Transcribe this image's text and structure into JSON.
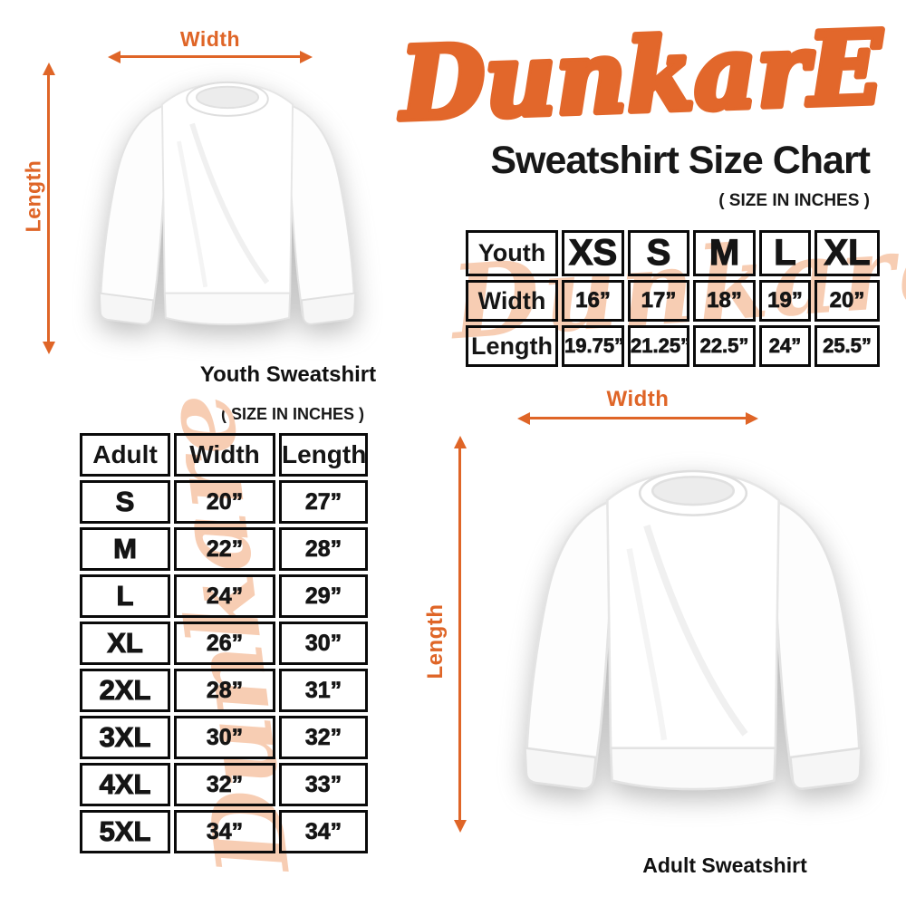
{
  "colors": {
    "accent": "#DF6527",
    "logo_orange": "#E2672B",
    "watermark": "#F7CDB3",
    "table_border": "#0A0A0A"
  },
  "header": {
    "brand": "DunkarE",
    "title": "Sweatshirt Size Chart",
    "note": "( SIZE IN INCHES )"
  },
  "youth_diagram": {
    "width_label": "Width",
    "length_label": "Length",
    "caption": "Youth Sweatshirt"
  },
  "adult_diagram": {
    "width_label": "Width",
    "length_label": "Length",
    "caption": "Adult Sweatshirt"
  },
  "adult_section_note": "( SIZE IN INCHES )",
  "watermark_text": "Dunkare",
  "chart_data": [
    {
      "type": "table",
      "name": "youth-sweatshirt-sizes",
      "units": "inches",
      "columns": [
        "Youth",
        "XS",
        "S",
        "M",
        "L",
        "XL"
      ],
      "rows": [
        [
          "Width",
          "16”",
          "17”",
          "18”",
          "19”",
          "20”"
        ],
        [
          "Length",
          "19.75”",
          "21.25”",
          "22.5”",
          "24”",
          "25.5”"
        ]
      ]
    },
    {
      "type": "table",
      "name": "adult-sweatshirt-sizes",
      "units": "inches",
      "columns": [
        "Adult",
        "Width",
        "Length"
      ],
      "rows": [
        [
          "S",
          "20”",
          "27”"
        ],
        [
          "M",
          "22”",
          "28”"
        ],
        [
          "L",
          "24”",
          "29”"
        ],
        [
          "XL",
          "26”",
          "30”"
        ],
        [
          "2XL",
          "28”",
          "31”"
        ],
        [
          "3XL",
          "30”",
          "32”"
        ],
        [
          "4XL",
          "32”",
          "33”"
        ],
        [
          "5XL",
          "34”",
          "34”"
        ]
      ]
    }
  ]
}
